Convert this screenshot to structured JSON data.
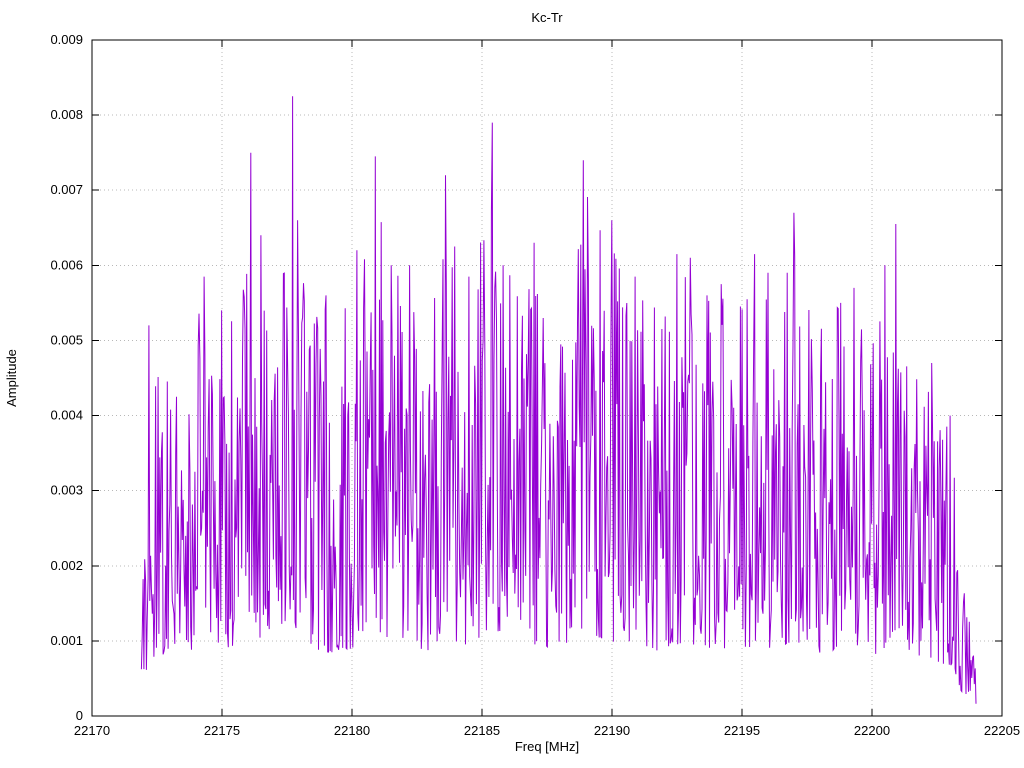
{
  "figure": {
    "background": "#ffffff",
    "border_color": "#000000",
    "grid_color": "#b8b8b8",
    "text_color": "#000000"
  },
  "chart_data": {
    "type": "line",
    "title": "Kc-Tr",
    "xlabel": "Freq [MHz]",
    "ylabel": "Amplitude",
    "xlim": [
      22170,
      22205
    ],
    "ylim": [
      0,
      0.009
    ],
    "grid": true,
    "legend": "none",
    "xticks": [
      {
        "value": 22170,
        "label": "22170"
      },
      {
        "value": 22175,
        "label": "22175"
      },
      {
        "value": 22180,
        "label": "22180"
      },
      {
        "value": 22185,
        "label": "22185"
      },
      {
        "value": 22190,
        "label": "22190"
      },
      {
        "value": 22195,
        "label": "22195"
      },
      {
        "value": 22200,
        "label": "22200"
      },
      {
        "value": 22205,
        "label": "22205"
      }
    ],
    "yticks": [
      {
        "value": 0.0,
        "label": "0"
      },
      {
        "value": 0.001,
        "label": "0.001"
      },
      {
        "value": 0.002,
        "label": "0.002"
      },
      {
        "value": 0.003,
        "label": "0.003"
      },
      {
        "value": 0.004,
        "label": "0.004"
      },
      {
        "value": 0.005,
        "label": "0.005"
      },
      {
        "value": 0.006,
        "label": "0.006"
      },
      {
        "value": 0.007,
        "label": "0.007"
      },
      {
        "value": 0.008,
        "label": "0.008"
      },
      {
        "value": 0.009,
        "label": "0.009"
      }
    ],
    "series": [
      {
        "name": "Kc-Tr",
        "color": "#9400d3",
        "x_start": 22171.9,
        "x_end": 22204.0,
        "n_points": 1000,
        "seed": 20231,
        "f_min": 0.15,
        "f_range": 0.8,
        "f_power": 1.5,
        "envelope": [
          [
            22171.9,
            0.0015
          ],
          [
            22172.2,
            0.0053
          ],
          [
            22173.0,
            0.0046
          ],
          [
            22174.2,
            0.0059
          ],
          [
            22175.0,
            0.0055
          ],
          [
            22176.1,
            0.0075
          ],
          [
            22176.8,
            0.0062
          ],
          [
            22177.7,
            0.0082
          ],
          [
            22178.5,
            0.0058
          ],
          [
            22179.5,
            0.0056
          ],
          [
            22180.2,
            0.0062
          ],
          [
            22181.0,
            0.0075
          ],
          [
            22182.0,
            0.006
          ],
          [
            22183.0,
            0.0058
          ],
          [
            22183.6,
            0.0072
          ],
          [
            22184.5,
            0.0059
          ],
          [
            22185.4,
            0.0079
          ],
          [
            22186.3,
            0.006
          ],
          [
            22187.2,
            0.0063
          ],
          [
            22188.0,
            0.0057
          ],
          [
            22188.9,
            0.0074
          ],
          [
            22190.0,
            0.0066
          ],
          [
            22191.0,
            0.0059
          ],
          [
            22192.0,
            0.0057
          ],
          [
            22192.7,
            0.0062
          ],
          [
            22193.5,
            0.0061
          ],
          [
            22194.5,
            0.0058
          ],
          [
            22195.5,
            0.0062
          ],
          [
            22196.3,
            0.0059
          ],
          [
            22197.0,
            0.0067
          ],
          [
            22198.0,
            0.0056
          ],
          [
            22199.0,
            0.0058
          ],
          [
            22200.0,
            0.0053
          ],
          [
            22200.9,
            0.0065
          ],
          [
            22201.6,
            0.0056
          ],
          [
            22202.3,
            0.0047
          ],
          [
            22203.0,
            0.0041
          ],
          [
            22203.5,
            0.0019
          ],
          [
            22204.0,
            0.0009
          ]
        ],
        "peaks": [
          [
            22172.2,
            0.0052
          ],
          [
            22174.3,
            0.00585
          ],
          [
            22175.0,
            0.0054
          ],
          [
            22176.1,
            0.0075
          ],
          [
            22176.5,
            0.0064
          ],
          [
            22177.7,
            0.00825
          ],
          [
            22177.9,
            0.0066
          ],
          [
            22179.0,
            0.0056
          ],
          [
            22180.2,
            0.0062
          ],
          [
            22180.9,
            0.00745
          ],
          [
            22181.5,
            0.006
          ],
          [
            22182.2,
            0.006
          ],
          [
            22183.6,
            0.0072
          ],
          [
            22184.5,
            0.00585
          ],
          [
            22185.4,
            0.0079
          ],
          [
            22185.8,
            0.006
          ],
          [
            22187.0,
            0.0063
          ],
          [
            22188.9,
            0.0074
          ],
          [
            22190.0,
            0.0066
          ],
          [
            22190.9,
            0.00585
          ],
          [
            22192.5,
            0.00615
          ],
          [
            22193.0,
            0.0061
          ],
          [
            22194.2,
            0.00575
          ],
          [
            22195.5,
            0.00615
          ],
          [
            22196.0,
            0.0059
          ],
          [
            22197.0,
            0.0067
          ],
          [
            22198.8,
            0.0055
          ],
          [
            22199.3,
            0.0057
          ],
          [
            22200.5,
            0.006
          ],
          [
            22200.9,
            0.00655
          ],
          [
            22202.3,
            0.0047
          ],
          [
            22203.0,
            0.004
          ]
        ]
      }
    ]
  }
}
